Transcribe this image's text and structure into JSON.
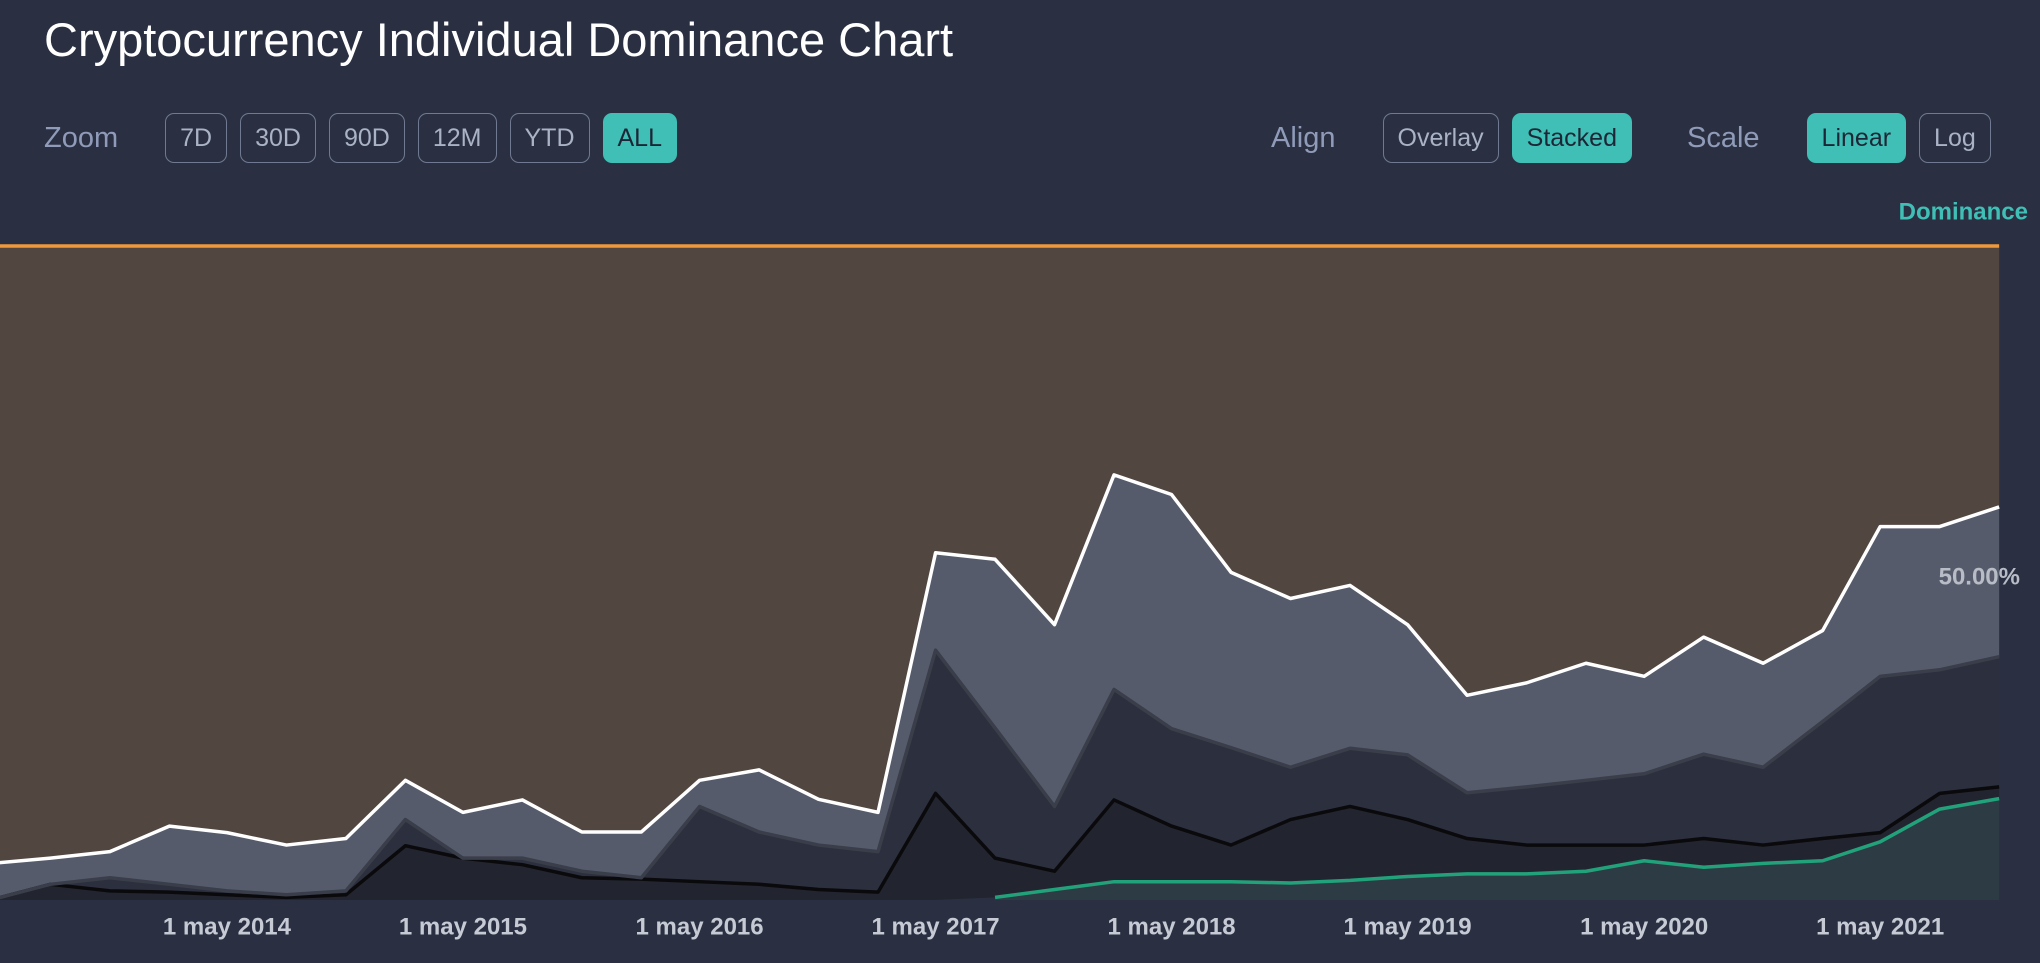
{
  "title": "Cryptocurrency Individual Dominance Chart",
  "controls": {
    "zoom": {
      "label": "Zoom",
      "options": [
        "7D",
        "30D",
        "90D",
        "12M",
        "YTD",
        "ALL"
      ],
      "active": 5
    },
    "align": {
      "label": "Align",
      "options": [
        "Overlay",
        "Stacked"
      ],
      "active": 1
    },
    "scale": {
      "label": "Scale",
      "options": [
        "Linear",
        "Log"
      ],
      "active": 0
    }
  },
  "chart_data": {
    "type": "area",
    "stacked": true,
    "y_axis_label": "Dominance",
    "x": [
      "2013-05-01",
      "2013-08-01",
      "2013-11-01",
      "2014-02-01",
      "2014-05-01",
      "2014-08-01",
      "2014-11-01",
      "2015-02-01",
      "2015-05-01",
      "2015-08-01",
      "2015-11-01",
      "2016-02-01",
      "2016-05-01",
      "2016-08-01",
      "2016-11-01",
      "2017-02-01",
      "2017-05-01",
      "2017-08-01",
      "2017-11-01",
      "2018-02-01",
      "2018-05-01",
      "2018-08-01",
      "2018-11-01",
      "2019-02-01",
      "2019-05-01",
      "2019-08-01",
      "2019-11-01",
      "2020-02-01",
      "2020-05-01",
      "2020-08-01",
      "2020-11-01",
      "2021-02-01",
      "2021-05-01",
      "2021-08-01",
      "2021-11-01"
    ],
    "xlim": [
      "2013-05-15",
      "2021-12-28"
    ],
    "xticks": [
      {
        "value": "2014-05-01",
        "label": "1 may 2014"
      },
      {
        "value": "2015-05-01",
        "label": "1 may 2015"
      },
      {
        "value": "2016-05-01",
        "label": "1 may 2016"
      },
      {
        "value": "2017-05-01",
        "label": "1 may 2017"
      },
      {
        "value": "2018-05-01",
        "label": "1 may 2018"
      },
      {
        "value": "2019-05-01",
        "label": "1 may 2019"
      },
      {
        "value": "2020-05-01",
        "label": "1 may 2020"
      },
      {
        "value": "2021-05-01",
        "label": "1 may 2021"
      }
    ],
    "ylim": [
      0,
      100
    ],
    "yticks": [
      {
        "value": 50,
        "label": "50.00%"
      }
    ],
    "series": [
      {
        "color": "#2d3b44",
        "line": "#22a27a",
        "values": [
          null,
          null,
          null,
          null,
          null,
          null,
          null,
          null,
          null,
          null,
          null,
          null,
          null,
          null,
          null,
          null,
          null,
          0.4,
          1.6,
          2.8,
          2.8,
          2.8,
          2.6,
          3.0,
          3.6,
          4.0,
          4.0,
          4.4,
          6.0,
          5.0,
          5.6,
          6.0,
          8.9,
          13.9,
          15.5
        ]
      },
      {
        "color": "#22252f",
        "line": "#0a0a0d",
        "values": [
          0,
          2.4,
          1.4,
          1.2,
          0.8,
          0.4,
          0.8,
          8.3,
          6.4,
          5.4,
          3.4,
          3.2,
          2.8,
          2.4,
          1.6,
          1.2,
          16.3,
          6.0,
          2.8,
          12.5,
          8.5,
          5.6,
          9.7,
          11.3,
          8.7,
          5.4,
          4.4,
          4.0,
          2.4,
          4.4,
          2.8,
          3.4,
          1.4,
          2.4,
          1.8
        ]
      },
      {
        "color": "#2c2f3d",
        "line": "#3a3e4a",
        "values": [
          0,
          0,
          2.0,
          1.2,
          0.6,
          0.4,
          0.6,
          4.0,
          0,
          1.0,
          1.0,
          0.2,
          11.5,
          8.0,
          6.8,
          6.2,
          21.9,
          19.9,
          9.9,
          16.9,
          14.9,
          14.9,
          8.0,
          8.9,
          9.9,
          7.0,
          8.9,
          9.9,
          10.9,
          12.9,
          11.9,
          17.9,
          23.9,
          18.9,
          19.9
        ]
      },
      {
        "color": "#565b6c",
        "line": "#ffffff",
        "values": [
          5.6,
          4.0,
          4.0,
          8.9,
          8.9,
          7.6,
          8.0,
          6.0,
          7.0,
          8.9,
          6.0,
          7.0,
          4.0,
          9.5,
          7.0,
          6.0,
          14.9,
          25.8,
          27.8,
          32.8,
          35.8,
          26.8,
          25.8,
          24.9,
          19.9,
          14.9,
          15.9,
          17.9,
          14.9,
          17.9,
          15.9,
          13.9,
          22.9,
          21.9,
          22.9
        ]
      },
      {
        "color": "#524640",
        "line": "#f0993a",
        "values": [
          94.4,
          93.6,
          92.6,
          88.7,
          89.7,
          91.6,
          90.6,
          81.7,
          86.6,
          84.7,
          89.6,
          89.6,
          81.7,
          80.1,
          84.6,
          86.6,
          46.9,
          47.9,
          57.9,
          35.0,
          38.0,
          49.9,
          53.9,
          51.9,
          57.9,
          68.7,
          66.8,
          63.8,
          65.8,
          59.8,
          63.8,
          58.8,
          42.9,
          42.9,
          39.9
        ]
      }
    ]
  }
}
